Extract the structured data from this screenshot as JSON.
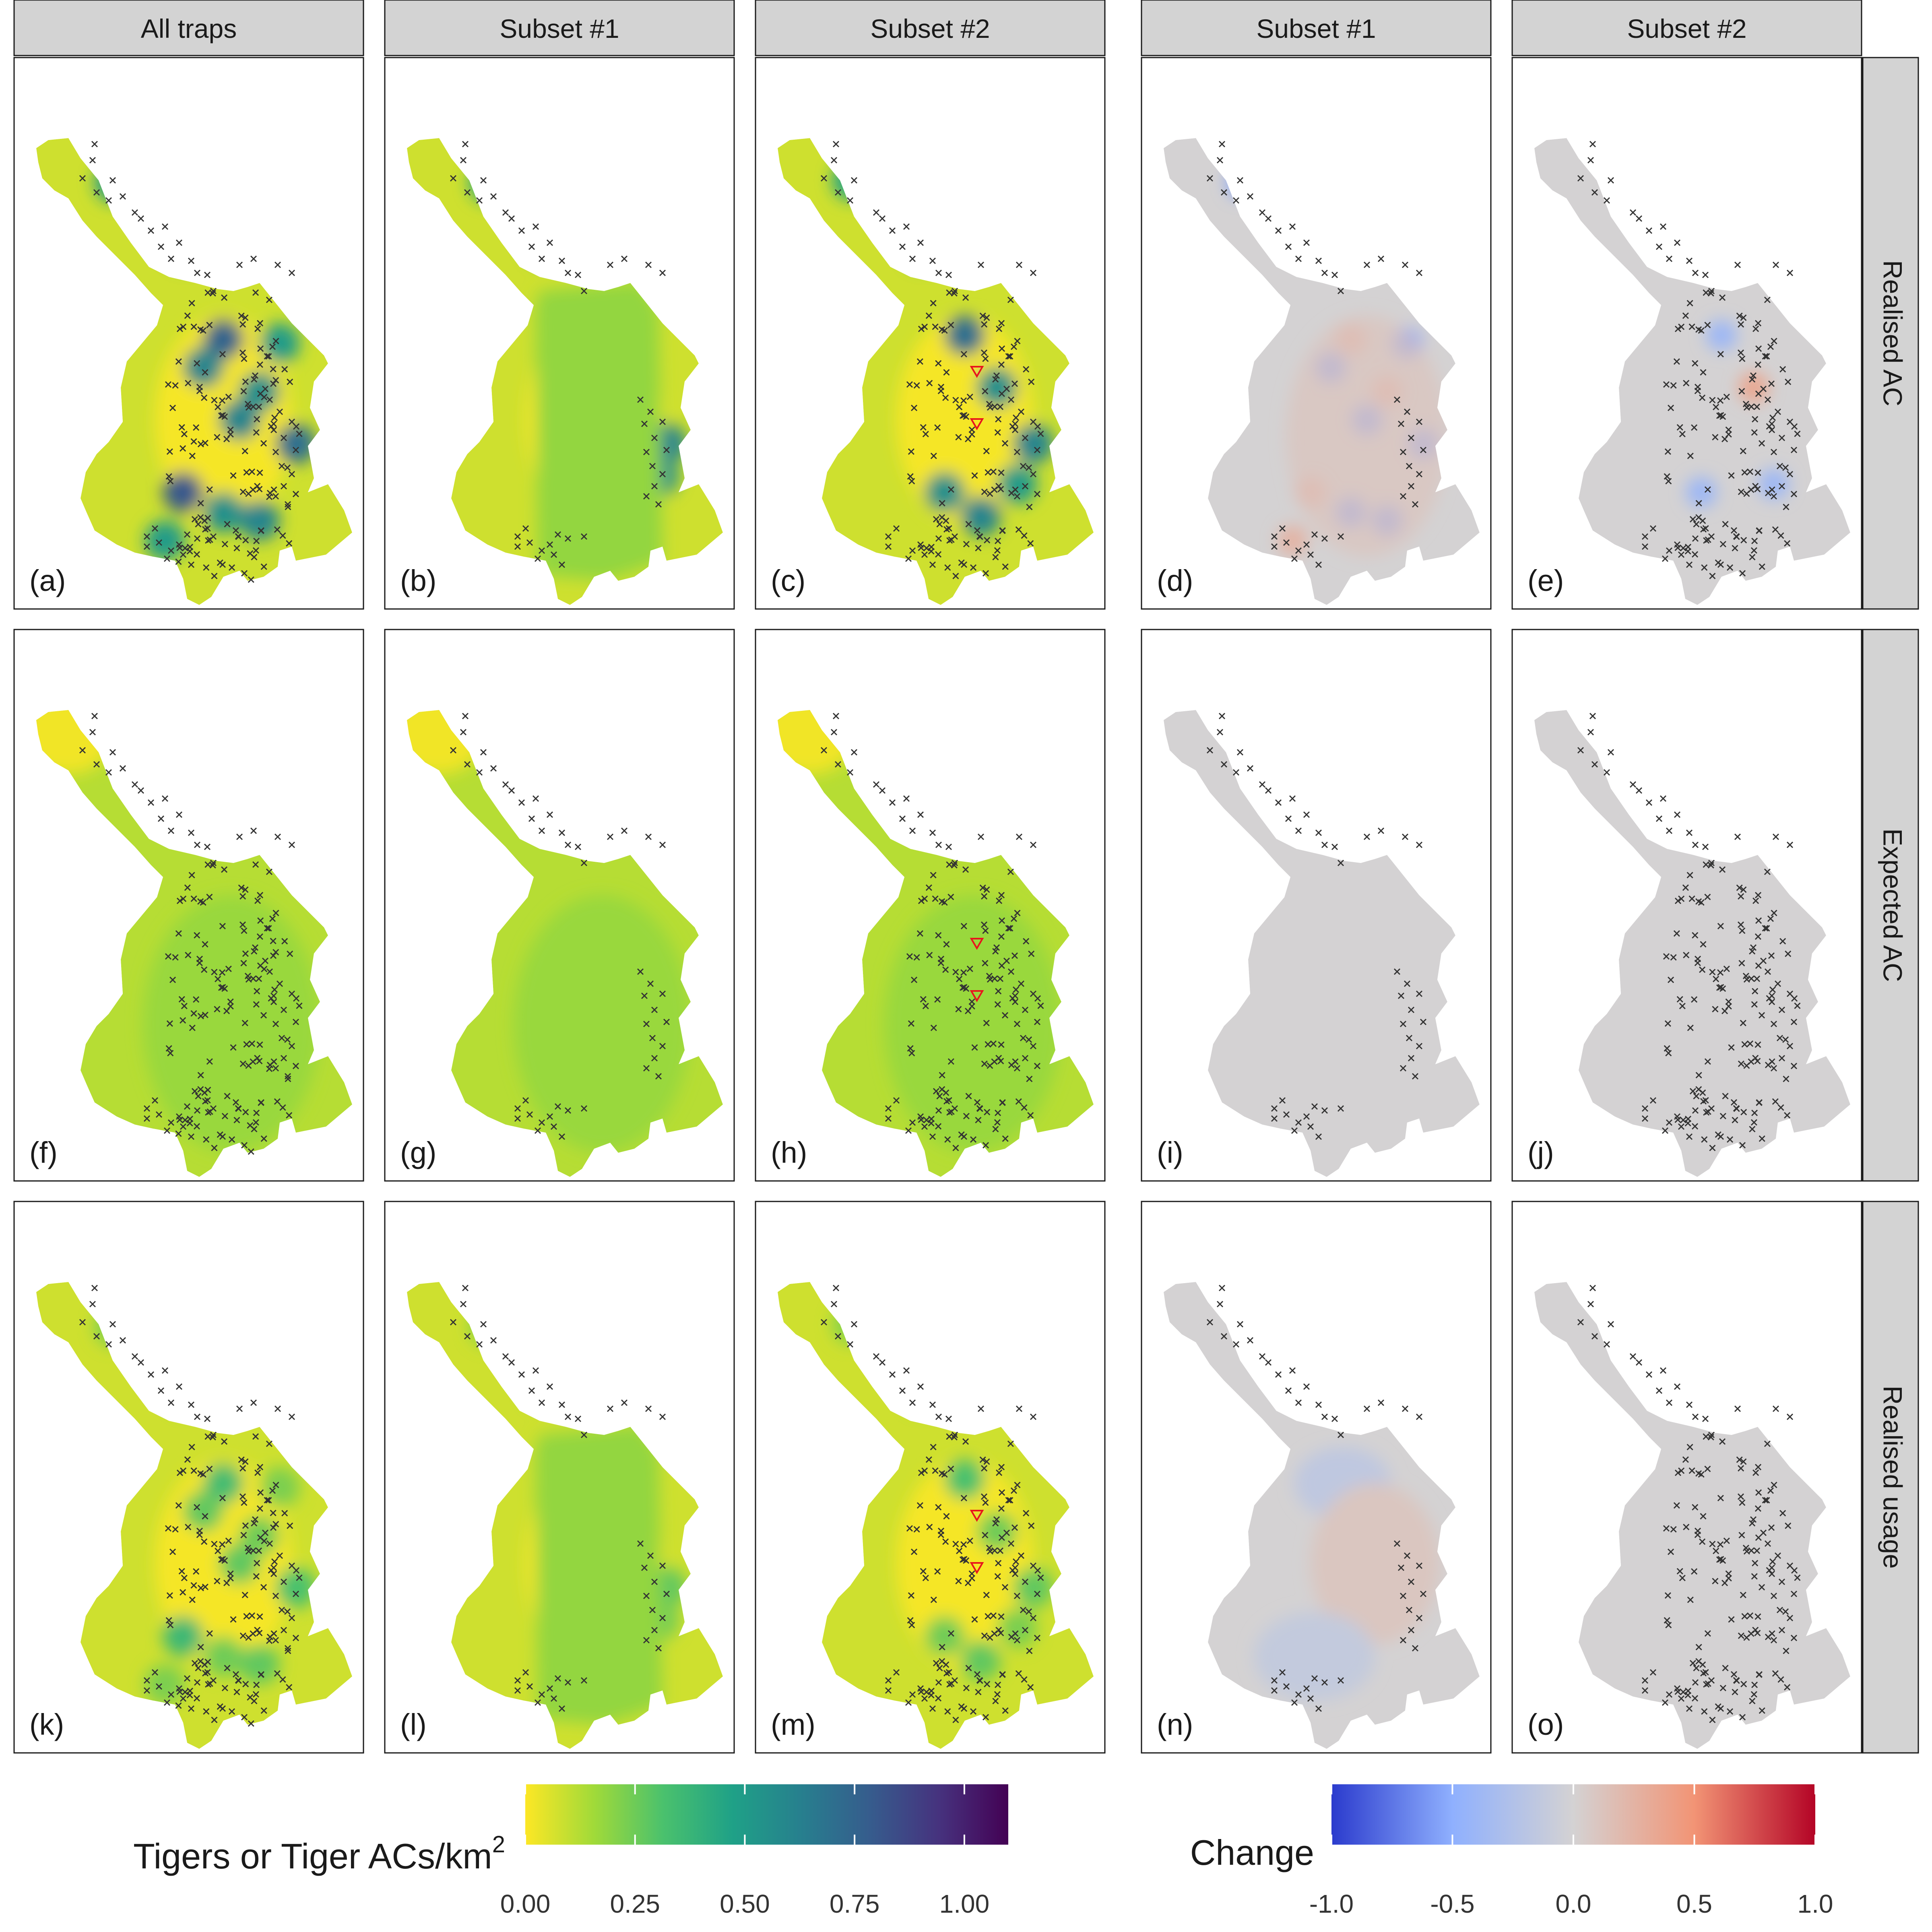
{
  "chart_data": {
    "type": "heatmap",
    "column_headers": [
      "All traps",
      "Subset #1",
      "Subset #2",
      "Subset #1",
      "Subset #2"
    ],
    "row_headers": [
      "Realised AC",
      "Expected AC",
      "Realised usage"
    ],
    "panel_labels": [
      "(a)",
      "(b)",
      "(c)",
      "(d)",
      "(e)",
      "(f)",
      "(g)",
      "(h)",
      "(i)",
      "(j)",
      "(k)",
      "(l)",
      "(m)",
      "(n)",
      "(o)"
    ],
    "density_legend": {
      "title_main": "Tigers or Tiger ACs/km",
      "title_sup": "2",
      "range": [
        0,
        1.1
      ],
      "ticks": [
        0.0,
        0.25,
        0.5,
        0.75,
        1.0
      ],
      "tick_labels": [
        "0.00",
        "0.25",
        "0.50",
        "0.75",
        "1.00"
      ],
      "palette": "viridis-reversed",
      "colors": [
        "#fde725",
        "#a0da39",
        "#4ac16d",
        "#1fa187",
        "#277f8e",
        "#365c8d",
        "#46327e",
        "#440154"
      ]
    },
    "change_legend": {
      "title": "Change",
      "range": [
        -1.0,
        1.0
      ],
      "ticks": [
        -1.0,
        -0.5,
        0.0,
        0.5,
        1.0
      ],
      "tick_labels": [
        "-1.0",
        "-0.5",
        "0.0",
        "0.5",
        "1.0"
      ],
      "colors": [
        "#2b3bcd",
        "#8fb0fe",
        "#d4d2d3",
        "#f29475",
        "#b40426"
      ]
    },
    "panels": [
      {
        "label": "(a)",
        "row": "Realised AC",
        "column": "All traps",
        "traps": "all",
        "range_density": [
          0,
          0.9
        ]
      },
      {
        "label": "(b)",
        "row": "Realised AC",
        "column": "Subset #1",
        "traps": "subset1",
        "range_density": [
          0,
          0.6
        ]
      },
      {
        "label": "(c)",
        "row": "Realised AC",
        "column": "Subset #2",
        "traps": "subset2",
        "range_density": [
          0,
          0.9
        ]
      },
      {
        "label": "(d)",
        "row": "Realised AC",
        "column": "Subset #1",
        "traps": "subset1",
        "range_change": [
          -1.0,
          0.4
        ]
      },
      {
        "label": "(e)",
        "row": "Realised AC",
        "column": "Subset #2",
        "traps": "subset2",
        "range_change": [
          -1.0,
          0.5
        ]
      },
      {
        "label": "(f)",
        "row": "Expected AC",
        "column": "All traps",
        "traps": "all",
        "range_density": [
          0.0,
          0.3
        ]
      },
      {
        "label": "(g)",
        "row": "Expected AC",
        "column": "Subset #1",
        "traps": "subset1",
        "range_density": [
          0.0,
          0.3
        ]
      },
      {
        "label": "(h)",
        "row": "Expected AC",
        "column": "Subset #2",
        "traps": "subset2",
        "range_density": [
          0.0,
          0.3
        ]
      },
      {
        "label": "(i)",
        "row": "Expected AC",
        "column": "Subset #1",
        "traps": "subset1",
        "range_change": [
          0.0,
          0.0
        ]
      },
      {
        "label": "(j)",
        "row": "Expected AC",
        "column": "Subset #2",
        "traps": "subset2",
        "range_change": [
          0.0,
          0.0
        ]
      },
      {
        "label": "(k)",
        "row": "Realised usage",
        "column": "All traps",
        "traps": "all",
        "range_density": [
          0.0,
          0.5
        ]
      },
      {
        "label": "(l)",
        "row": "Realised usage",
        "column": "Subset #1",
        "traps": "subset1",
        "range_density": [
          0.0,
          0.4
        ]
      },
      {
        "label": "(m)",
        "row": "Realised usage",
        "column": "Subset #2",
        "traps": "subset2",
        "range_density": [
          0.0,
          0.5
        ]
      },
      {
        "label": "(n)",
        "row": "Realised usage",
        "column": "Subset #1",
        "traps": "subset1",
        "range_change": [
          -0.3,
          0.2
        ]
      },
      {
        "label": "(o)",
        "row": "Realised usage",
        "column": "Subset #2",
        "traps": "subset2",
        "range_change": [
          0.0,
          0.1
        ]
      }
    ]
  }
}
